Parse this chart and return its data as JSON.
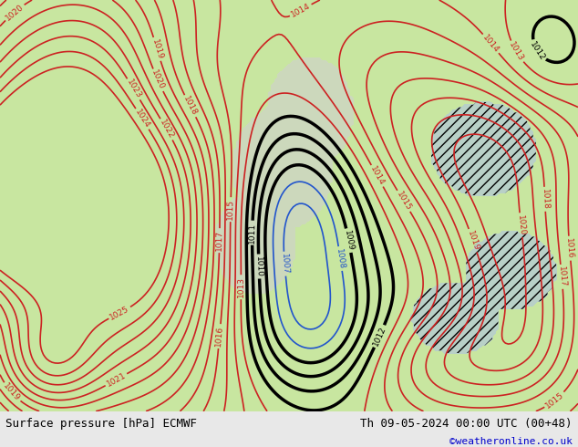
{
  "title_left": "Surface pressure [hPa] ECMWF",
  "title_right": "Th 09-05-2024 00:00 UTC (00+48)",
  "credit": "©weatheronline.co.uk",
  "bg_color": "#c8e6a0",
  "fig_width": 6.34,
  "fig_height": 4.9,
  "dpi": 100,
  "bottom_bar_height": 0.08,
  "bottom_bar_color": "#e8e8e8",
  "text_color_left": "#000000",
  "text_color_right": "#000000",
  "text_color_credit": "#0000cc",
  "font_size_bottom": 9,
  "font_size_credit": 8
}
